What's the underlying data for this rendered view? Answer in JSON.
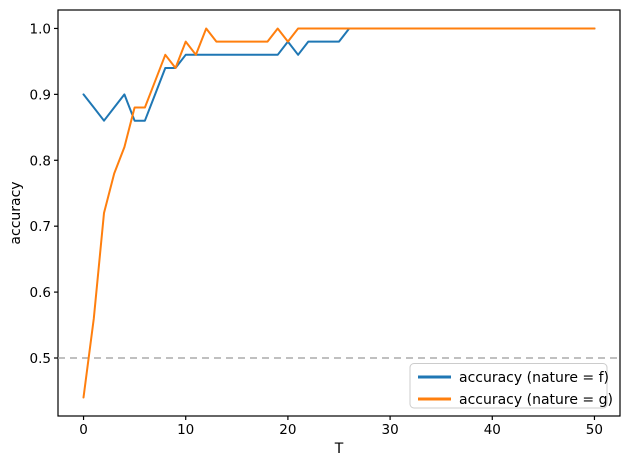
{
  "chart_data": {
    "type": "line",
    "title": "",
    "xlabel": "T",
    "ylabel": "accuracy",
    "xlim": [
      -2.5,
      52.5
    ],
    "ylim": [
      0.412,
      1.028
    ],
    "grid": false,
    "legend_position": "lower right",
    "x_ticks": [
      "0",
      "10",
      "20",
      "30",
      "40",
      "50"
    ],
    "x_tick_values": [
      0,
      10,
      20,
      30,
      40,
      50
    ],
    "y_ticks": [
      "0.5",
      "0.6",
      "0.7",
      "0.8",
      "0.9",
      "1.0"
    ],
    "y_tick_values": [
      0.5,
      0.6,
      0.7,
      0.8,
      0.9,
      1.0
    ],
    "hline": {
      "y": 0.5,
      "style": "dashed",
      "color": "#ababab"
    },
    "x": [
      0,
      1,
      2,
      3,
      4,
      5,
      6,
      7,
      8,
      9,
      10,
      11,
      12,
      13,
      14,
      15,
      16,
      17,
      18,
      19,
      20,
      21,
      22,
      23,
      24,
      25,
      26,
      27,
      28,
      29,
      30,
      31,
      32,
      33,
      34,
      35,
      36,
      37,
      38,
      39,
      40,
      41,
      42,
      43,
      44,
      45,
      46,
      47,
      48,
      49,
      50
    ],
    "series": [
      {
        "name": "accuracy (nature = f)",
        "color": "#1f77b4",
        "values": [
          0.9,
          0.88,
          0.86,
          0.88,
          0.9,
          0.86,
          0.86,
          0.9,
          0.94,
          0.94,
          0.96,
          0.96,
          0.96,
          0.96,
          0.96,
          0.96,
          0.96,
          0.96,
          0.96,
          0.96,
          0.98,
          0.96,
          0.98,
          0.98,
          0.98,
          0.98,
          1.0,
          1.0,
          1.0,
          1.0,
          1.0,
          1.0,
          1.0,
          1.0,
          1.0,
          1.0,
          1.0,
          1.0,
          1.0,
          1.0,
          1.0,
          1.0,
          1.0,
          1.0,
          1.0,
          1.0,
          1.0,
          1.0,
          1.0,
          1.0,
          1.0
        ]
      },
      {
        "name": "accuracy (nature = g)",
        "color": "#ff7f0e",
        "values": [
          0.44,
          0.56,
          0.72,
          0.78,
          0.82,
          0.88,
          0.88,
          0.92,
          0.96,
          0.94,
          0.98,
          0.96,
          1.0,
          0.98,
          0.98,
          0.98,
          0.98,
          0.98,
          0.98,
          1.0,
          0.98,
          1.0,
          1.0,
          1.0,
          1.0,
          1.0,
          1.0,
          1.0,
          1.0,
          1.0,
          1.0,
          1.0,
          1.0,
          1.0,
          1.0,
          1.0,
          1.0,
          1.0,
          1.0,
          1.0,
          1.0,
          1.0,
          1.0,
          1.0,
          1.0,
          1.0,
          1.0,
          1.0,
          1.0,
          1.0,
          1.0
        ]
      }
    ],
    "colors": {
      "spine": "#000000",
      "tick": "#000000",
      "legend_border": "#cccccc",
      "background": "#ffffff"
    }
  }
}
